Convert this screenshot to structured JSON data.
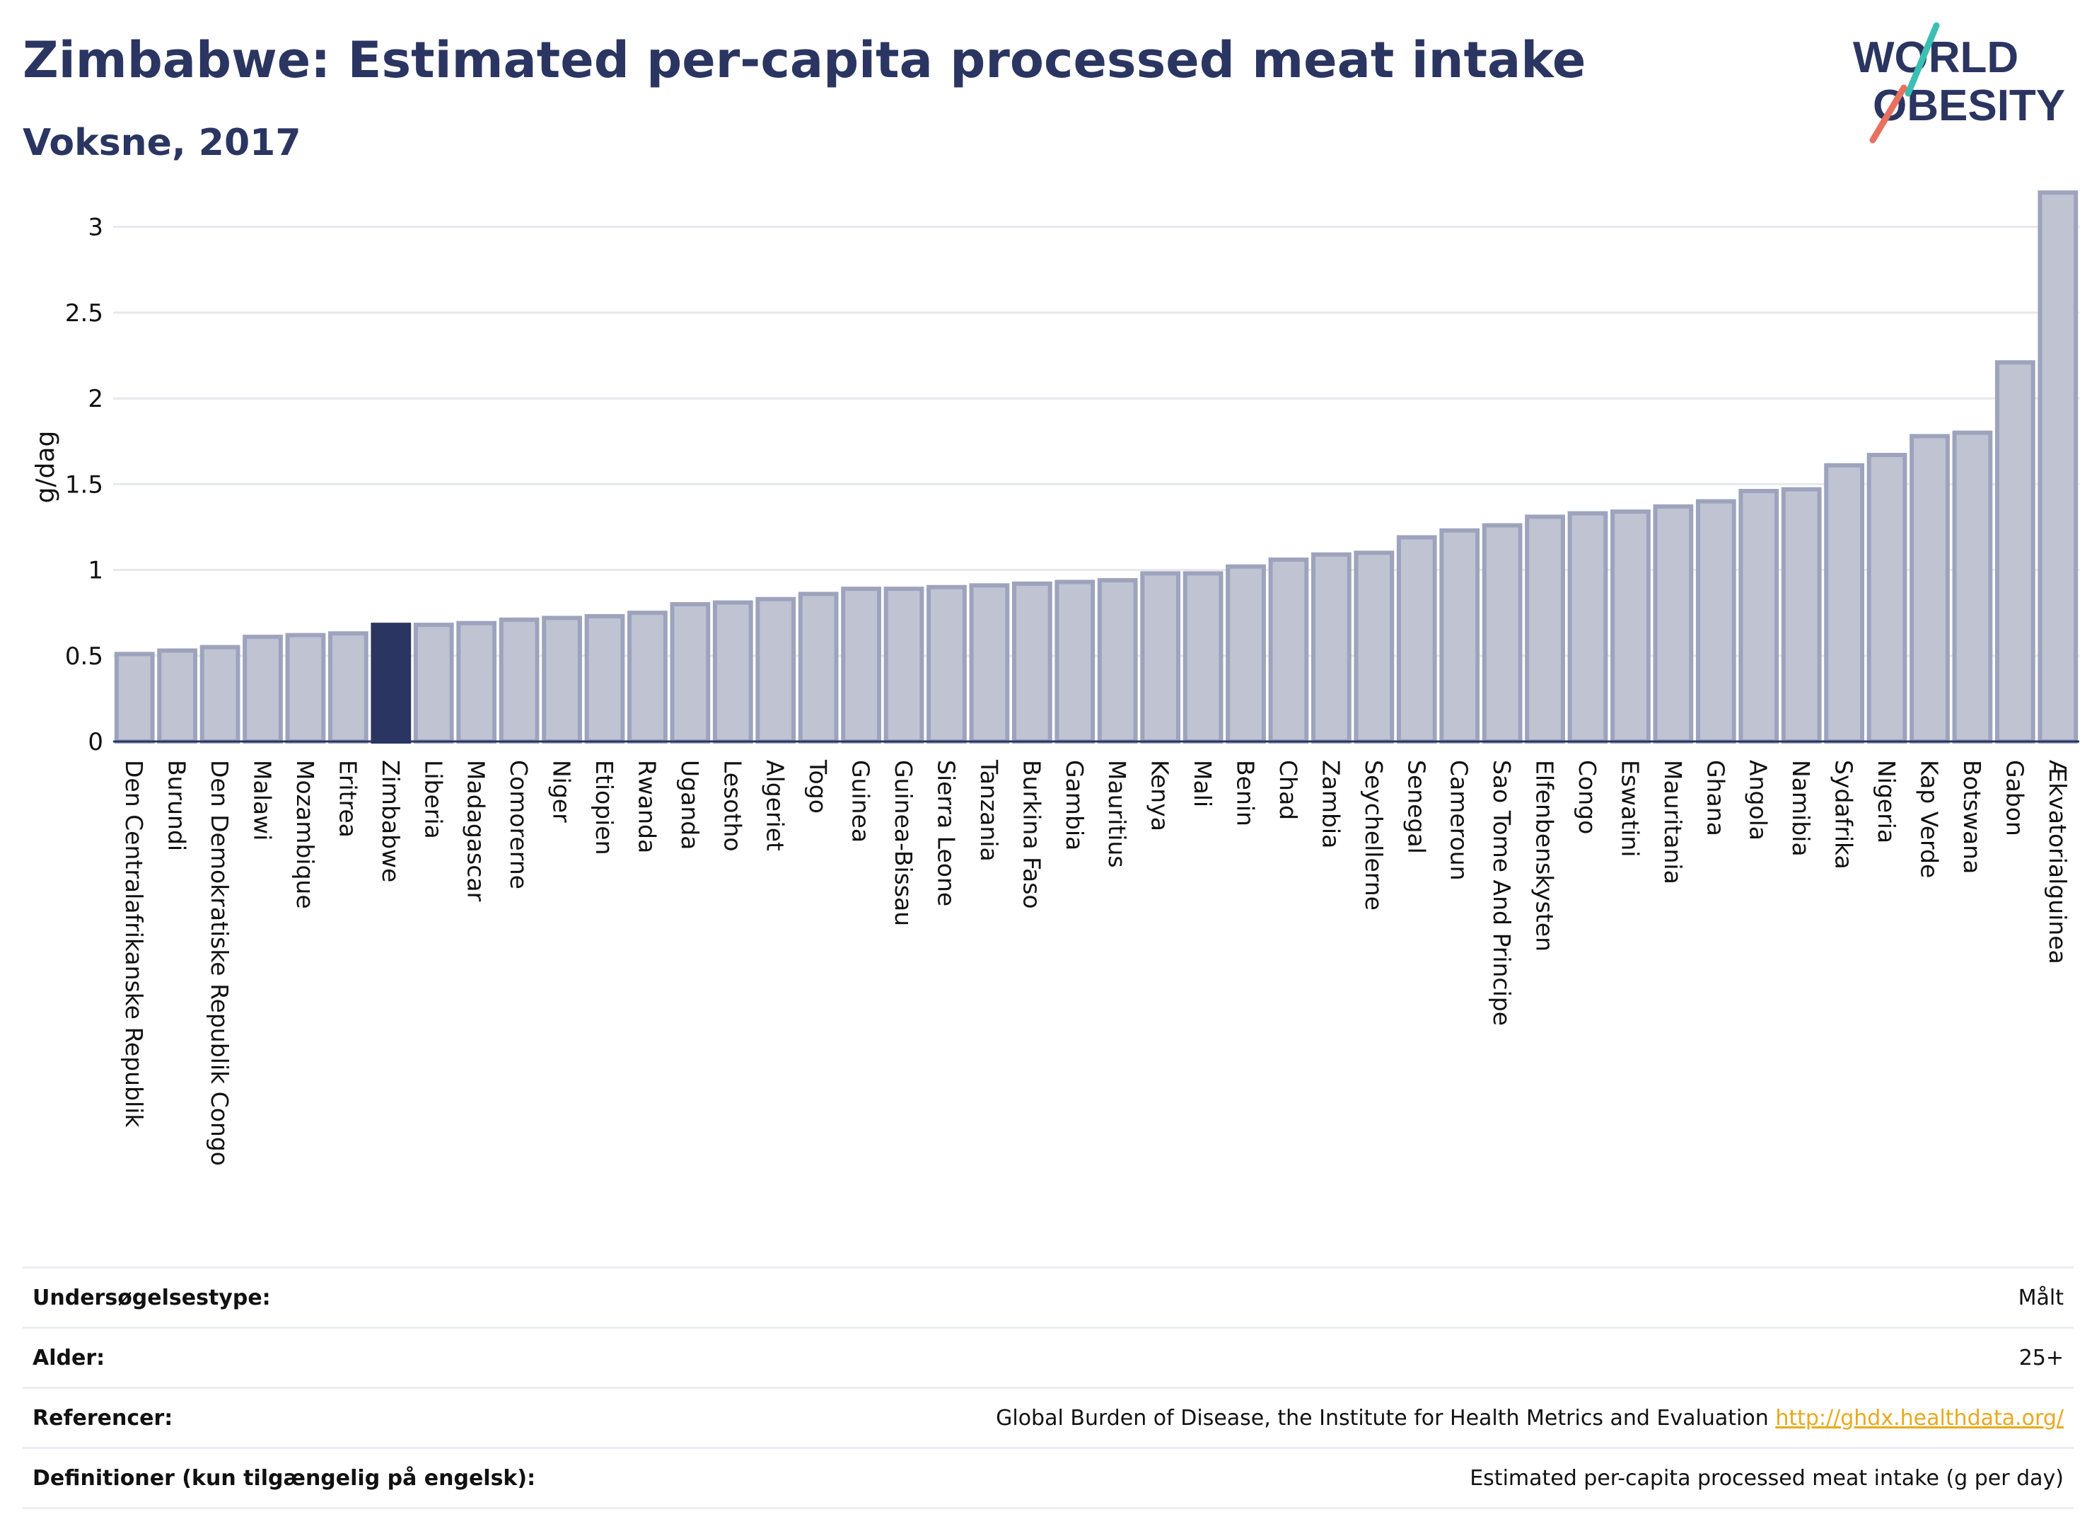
{
  "header": {
    "title": "Zimbabwe: Estimated per-capita processed meat intake",
    "subtitle": "Voksne, 2017"
  },
  "logo": {
    "line1": "WORLD",
    "line2": "OBESITY"
  },
  "colors": {
    "highlight": "#2b3561",
    "bar": "#bfc3d2",
    "bar_edge": "#9ea3bd",
    "grid": "#e6e8ee",
    "link": "#e7a91e"
  },
  "chart_data": {
    "type": "bar",
    "ylabel": "g/dag",
    "ylim": [
      0,
      3.25
    ],
    "yticks": [
      0,
      0.5,
      1,
      1.5,
      2,
      2.5,
      3
    ],
    "ytick_labels": [
      "0",
      "0.5",
      "1",
      "1.5",
      "2",
      "2.5",
      "3"
    ],
    "highlight": "Zimbabwe",
    "grid": true,
    "categories": [
      "Den Centralafrikanske Republik",
      "Burundi",
      "Den Demokratiske Republik Congo",
      "Malawi",
      "Mozambique",
      "Eritrea",
      "Zimbabwe",
      "Liberia",
      "Madagascar",
      "Comorerne",
      "Niger",
      "Etiopien",
      "Rwanda",
      "Uganda",
      "Lesotho",
      "Algeriet",
      "Togo",
      "Guinea",
      "Guinea-Bissau",
      "Sierra Leone",
      "Tanzania",
      "Burkina Faso",
      "Gambia",
      "Mauritius",
      "Kenya",
      "Mali",
      "Benin",
      "Chad",
      "Zambia",
      "Seychellerne",
      "Senegal",
      "Cameroun",
      "Sao Tome And Principe",
      "Elfenbenskysten",
      "Congo",
      "Eswatini",
      "Mauritania",
      "Ghana",
      "Angola",
      "Namibia",
      "Sydafrika",
      "Nigeria",
      "Kap Verde",
      "Botswana",
      "Gabon",
      "Ækvatorialguinea"
    ],
    "values": [
      0.51,
      0.53,
      0.55,
      0.61,
      0.62,
      0.63,
      0.68,
      0.68,
      0.69,
      0.71,
      0.72,
      0.73,
      0.75,
      0.8,
      0.81,
      0.83,
      0.86,
      0.89,
      0.89,
      0.9,
      0.91,
      0.92,
      0.93,
      0.94,
      0.98,
      0.98,
      1.02,
      1.06,
      1.09,
      1.1,
      1.19,
      1.23,
      1.26,
      1.31,
      1.33,
      1.34,
      1.37,
      1.4,
      1.46,
      1.47,
      1.61,
      1.67,
      1.78,
      1.8,
      2.21,
      3.2
    ]
  },
  "meta": {
    "rows": [
      {
        "label": "Undersøgelsestype:",
        "value": "Målt"
      },
      {
        "label": "Alder:",
        "value": "25+"
      },
      {
        "label": "Referencer:",
        "value": "Global Burden of Disease, the Institute for Health Metrics and Evaluation",
        "link": "http://ghdx.healthdata.org/"
      },
      {
        "label": "Definitioner (kun tilgængelig på engelsk):",
        "value": "Estimated per-capita processed meat intake (g per day)"
      }
    ]
  }
}
